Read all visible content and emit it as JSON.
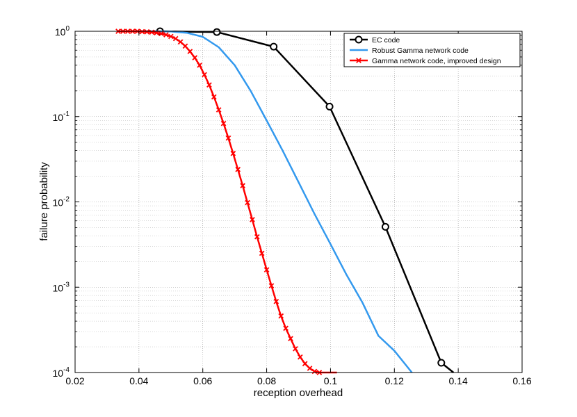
{
  "chart_data": {
    "type": "line",
    "title": "",
    "xlabel": "reception overhead",
    "ylabel": "failure probability",
    "xlim": [
      0.02,
      0.16
    ],
    "ylim": [
      0.0001,
      1
    ],
    "yscale": "log",
    "grid": true,
    "legend_position": "top-right",
    "x_ticks": [
      "0.02",
      "0.04",
      "0.06",
      "0.08",
      "0.1",
      "0.12",
      "0.14",
      "0.16"
    ],
    "y_ticks": [
      {
        "base": "10",
        "exp": "0",
        "value": 1
      },
      {
        "base": "10",
        "exp": "-1",
        "value": 0.1
      },
      {
        "base": "10",
        "exp": "-2",
        "value": 0.01
      },
      {
        "base": "10",
        "exp": "-3",
        "value": 0.001
      },
      {
        "base": "10",
        "exp": "-4",
        "value": 0.0001
      }
    ],
    "series": [
      {
        "name": "EC code",
        "color": "#000000",
        "marker": "circle",
        "x": [
          0.0466,
          0.0644,
          0.0822,
          0.0997,
          0.1172,
          0.1347,
          0.1385
        ],
        "y": [
          1.0,
          0.98,
          0.66,
          0.131,
          0.0051,
          0.00013,
          0.0001
        ]
      },
      {
        "name": "Robust Gamma network code",
        "color": "#3399ee",
        "marker": "none",
        "x": [
          0.04,
          0.045,
          0.05,
          0.055,
          0.06,
          0.065,
          0.07,
          0.075,
          0.08,
          0.085,
          0.09,
          0.095,
          0.1,
          0.105,
          0.11,
          0.115,
          0.12,
          0.1255
        ],
        "y": [
          1.0,
          1.0,
          0.995,
          0.96,
          0.86,
          0.65,
          0.4,
          0.2,
          0.09,
          0.04,
          0.017,
          0.0072,
          0.0032,
          0.0014,
          0.00066,
          0.00027,
          0.00018,
          0.0001
        ]
      },
      {
        "name": "Gamma network code, improved design",
        "color": "#ff0000",
        "marker": "x",
        "x": [
          0.0335,
          0.035,
          0.0365,
          0.038,
          0.0395,
          0.041,
          0.0425,
          0.044,
          0.0455,
          0.047,
          0.0485,
          0.05,
          0.0515,
          0.053,
          0.0545,
          0.056,
          0.0575,
          0.059,
          0.0605,
          0.062,
          0.0635,
          0.065,
          0.0665,
          0.068,
          0.0695,
          0.071,
          0.0725,
          0.074,
          0.0755,
          0.077,
          0.0785,
          0.08,
          0.0815,
          0.083,
          0.0845,
          0.086,
          0.0875,
          0.089,
          0.0905,
          0.092,
          0.0935,
          0.095,
          0.0965,
          0.098,
          0.0995,
          0.101,
          0.102
        ],
        "y": [
          1.0,
          1.0,
          1.0,
          1.0,
          1.0,
          0.99,
          0.985,
          0.975,
          0.96,
          0.94,
          0.91,
          0.87,
          0.82,
          0.75,
          0.67,
          0.58,
          0.49,
          0.4,
          0.31,
          0.235,
          0.17,
          0.12,
          0.083,
          0.056,
          0.037,
          0.024,
          0.0155,
          0.0098,
          0.0062,
          0.0039,
          0.0025,
          0.0016,
          0.00104,
          0.00068,
          0.00046,
          0.00033,
          0.00025,
          0.00019,
          0.000152,
          0.000127,
          0.000112,
          0.000103,
          0.0001,
          0.0001,
          0.0001,
          0.0001,
          0.0001
        ]
      }
    ]
  }
}
